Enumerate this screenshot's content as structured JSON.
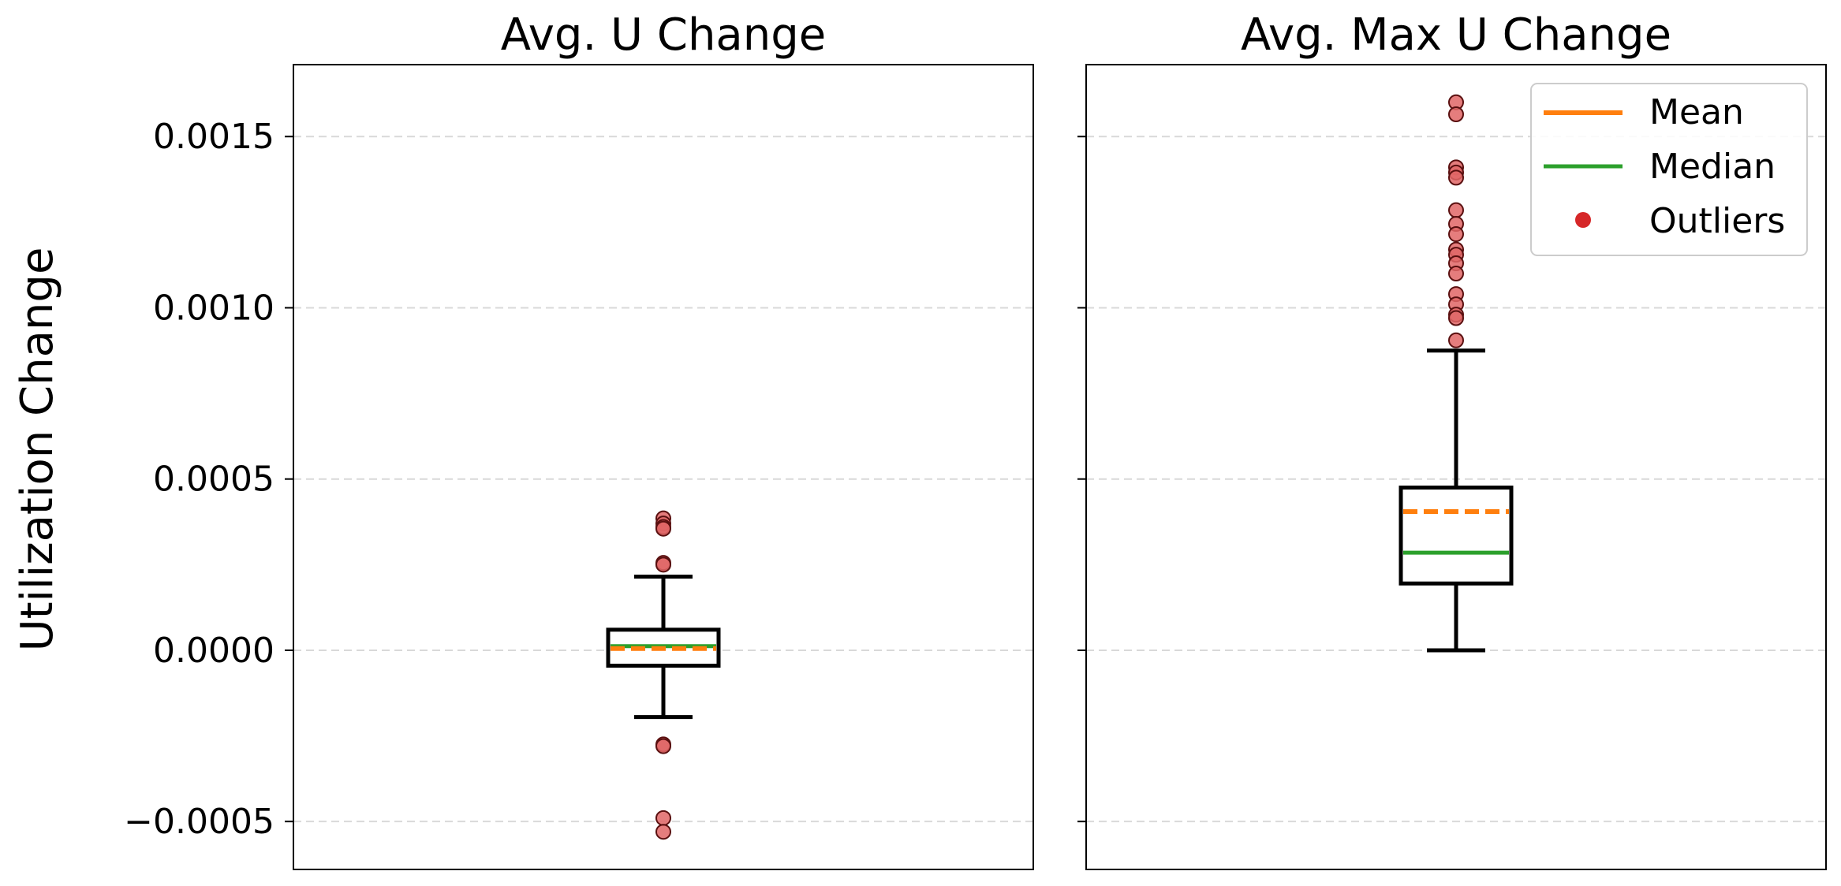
{
  "figure": {
    "ylabel": "Utilization Change"
  },
  "legend": {
    "placement": "top-right",
    "entries": [
      {
        "label": "Mean",
        "color": "#ff7f0e",
        "kind": "line"
      },
      {
        "label": "Median",
        "color": "#2ca02c",
        "kind": "line"
      },
      {
        "label": "Outliers",
        "color": "#d62728",
        "kind": "marker"
      }
    ]
  },
  "chart_data": [
    {
      "type": "box",
      "title": "Avg. U Change",
      "xlabel": "",
      "ylabel": "Utilization Change",
      "ylim": [
        -0.00064,
        0.00171
      ],
      "yticks": [
        -0.0005,
        0.0,
        0.0005,
        0.001,
        0.0015
      ],
      "ytick_labels": [
        "−0.0005",
        "0.0000",
        "0.0005",
        "0.0010",
        "0.0015"
      ],
      "grid": "y-dashed",
      "box": {
        "whisker_low": -0.000195,
        "q1": -4.5e-05,
        "median": 1.2e-05,
        "mean": 5e-06,
        "q3": 6e-05,
        "whisker_high": 0.000215
      },
      "outliers": [
        0.000385,
        0.00037,
        0.00036,
        0.000355,
        0.000255,
        0.00025,
        -0.000275,
        -0.00028,
        -0.00049,
        -0.00053
      ]
    },
    {
      "type": "box",
      "title": "Avg. Max U Change",
      "xlabel": "",
      "ylabel": "",
      "ylim": [
        -0.00064,
        0.00171
      ],
      "yticks": [
        -0.0005,
        0.0,
        0.0005,
        0.001,
        0.0015
      ],
      "grid": "y-dashed",
      "box": {
        "whisker_low": 0.0,
        "q1": 0.000195,
        "median": 0.000285,
        "mean": 0.000405,
        "q3": 0.000475,
        "whisker_high": 0.000875
      },
      "outliers": [
        0.0016,
        0.001565,
        0.00141,
        0.001395,
        0.00138,
        0.001285,
        0.001245,
        0.001215,
        0.00117,
        0.001155,
        0.00113,
        0.0011,
        0.00104,
        0.00101,
        0.00098,
        0.00097,
        0.000905
      ]
    }
  ],
  "colors": {
    "mean": "#ff7f0e",
    "median": "#2ca02c",
    "outlier_fill": "#e06666",
    "outlier_edge": "#5a1010",
    "grid": "#d9d9d9"
  }
}
